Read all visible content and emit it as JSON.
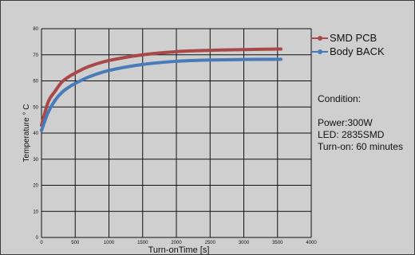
{
  "chart_data": {
    "type": "line",
    "xlabel": "Turn-onTime [s]",
    "ylabel": "Temperature ° C",
    "xlim": [
      0,
      4000
    ],
    "ylim": [
      0,
      80
    ],
    "x_ticks": [
      0,
      500,
      1000,
      1500,
      2000,
      2500,
      3000,
      3500,
      4000
    ],
    "y_ticks": [
      0,
      10,
      20,
      30,
      40,
      50,
      60,
      70,
      80
    ],
    "grid": true,
    "legend_position": "top-right, outside plot",
    "series": [
      {
        "name": "SMD PCB",
        "color": "#a84848",
        "x": [
          0,
          100,
          200,
          300,
          400,
          500,
          700,
          1000,
          1500,
          2000,
          2500,
          3000,
          3550
        ],
        "y": [
          43,
          52,
          56,
          59.5,
          61.5,
          63,
          65.5,
          67.8,
          70,
          71.2,
          71.7,
          72,
          72.2
        ]
      },
      {
        "name": "Body BACK",
        "color": "#4a7ab8",
        "x": [
          0,
          100,
          200,
          300,
          400,
          500,
          700,
          1000,
          1500,
          2000,
          2500,
          3000,
          3550
        ],
        "y": [
          41,
          48,
          52.5,
          55.5,
          57.5,
          59,
          61.5,
          64,
          66.3,
          67.5,
          68,
          68.2,
          68.3
        ]
      }
    ]
  },
  "conditions": {
    "title": "Condition:",
    "power": "Power:300W",
    "led": "LED: 2835SMD",
    "turn_on": "Turn-on: 60 minutes"
  }
}
